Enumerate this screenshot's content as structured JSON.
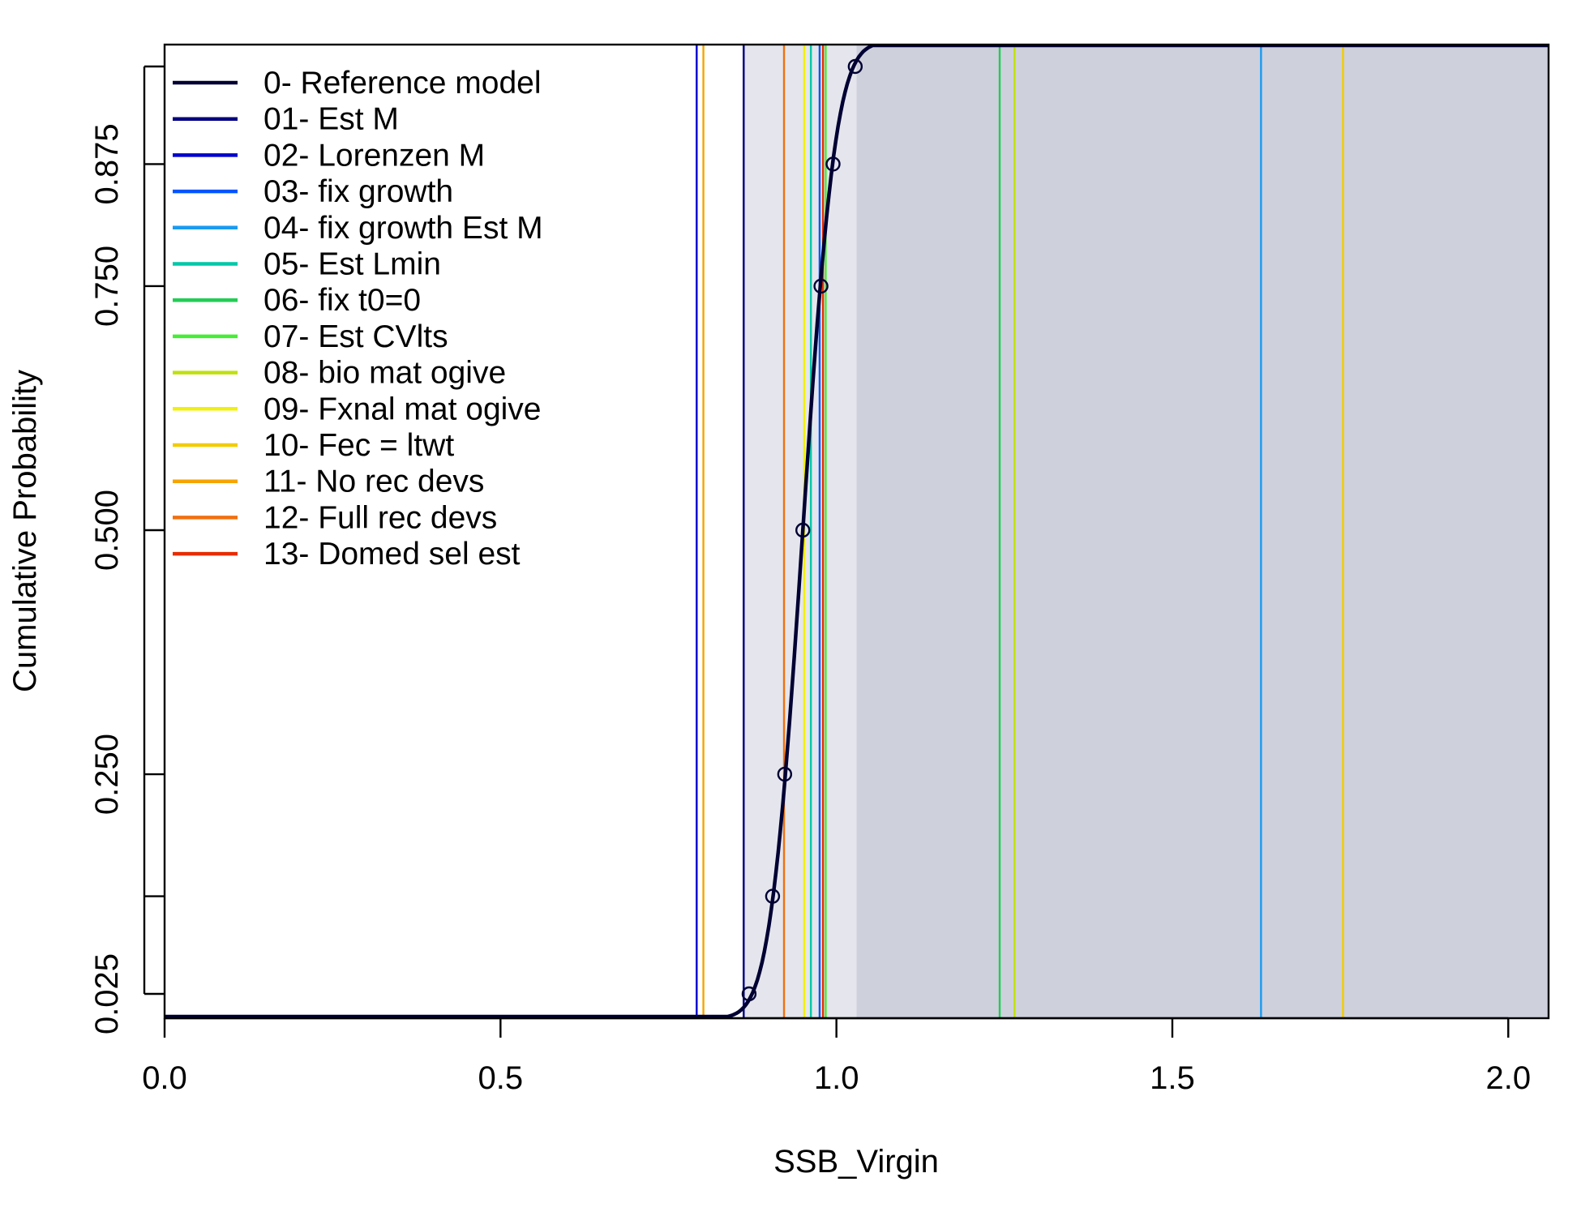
{
  "chart_data": {
    "type": "line",
    "xlabel": "SSB_Virgin",
    "ylabel": "Cumulative Probability",
    "xlim": [
      0,
      2.06
    ],
    "ylim": [
      0,
      1
    ],
    "x_ticks": [
      "0.0",
      "0.5",
      "1.0",
      "1.5",
      "2.0"
    ],
    "x_tick_values": [
      0,
      0.5,
      1.0,
      1.5,
      2.0
    ],
    "y_ticks": [
      "0.025",
      "0.250",
      "0.500",
      "0.750",
      "0.875"
    ],
    "y_tick_values": [
      0.025,
      0.25,
      0.5,
      0.75,
      0.875
    ],
    "y_minor_tick_values": [
      0.125,
      0.975
    ],
    "legend_position": "top-left",
    "shading": {
      "light_region": [
        0.86,
        1.03
      ],
      "dark_region": [
        1.03,
        2.06
      ],
      "light_color": "#e5e6ed",
      "dark_color": "#ced0dc"
    },
    "cdf": {
      "name": "0- Reference model",
      "color": "#000033",
      "mean": 0.95,
      "sd": 0.0385,
      "quantile_points": [
        {
          "p": 0.025,
          "x": 0.87
        },
        {
          "p": 0.125,
          "x": 0.905
        },
        {
          "p": 0.25,
          "x": 0.923
        },
        {
          "p": 0.5,
          "x": 0.95
        },
        {
          "p": 0.75,
          "x": 0.977
        },
        {
          "p": 0.875,
          "x": 0.995
        },
        {
          "p": 0.975,
          "x": 1.028
        }
      ]
    },
    "series": [
      {
        "name": "0- Reference model",
        "color": "#000033"
      },
      {
        "name": "01- Est M",
        "color": "#000080",
        "value": 0.862
      },
      {
        "name": "02- Lorenzen M",
        "color": "#0000cc",
        "value": 0.792
      },
      {
        "name": "03- fix growth",
        "color": "#0055ff",
        "value": 0.975
      },
      {
        "name": "04- fix growth Est M",
        "color": "#1a9af0",
        "value": 1.632
      },
      {
        "name": "05- Est Lmin",
        "color": "#00c8a8",
        "value": 0.962
      },
      {
        "name": "06- fix t0=0",
        "color": "#22cc55",
        "value": 1.243
      },
      {
        "name": "07- Est CVlts",
        "color": "#44ee33",
        "value": 0.984
      },
      {
        "name": "08- bio mat ogive",
        "color": "#c0e010",
        "value": 1.265
      },
      {
        "name": "09- Fxnal mat ogive",
        "color": "#f0f010",
        "value": 0.952
      },
      {
        "name": "10- Fec = ltwt",
        "color": "#f2cc00",
        "value": 1.754
      },
      {
        "name": "11- No rec devs",
        "color": "#f5a500",
        "value": 0.802
      },
      {
        "name": "12- Full rec devs",
        "color": "#f07010",
        "value": 0.922
      },
      {
        "name": "13- Domed sel est",
        "color": "#e82c00",
        "value": 0.98
      }
    ]
  }
}
